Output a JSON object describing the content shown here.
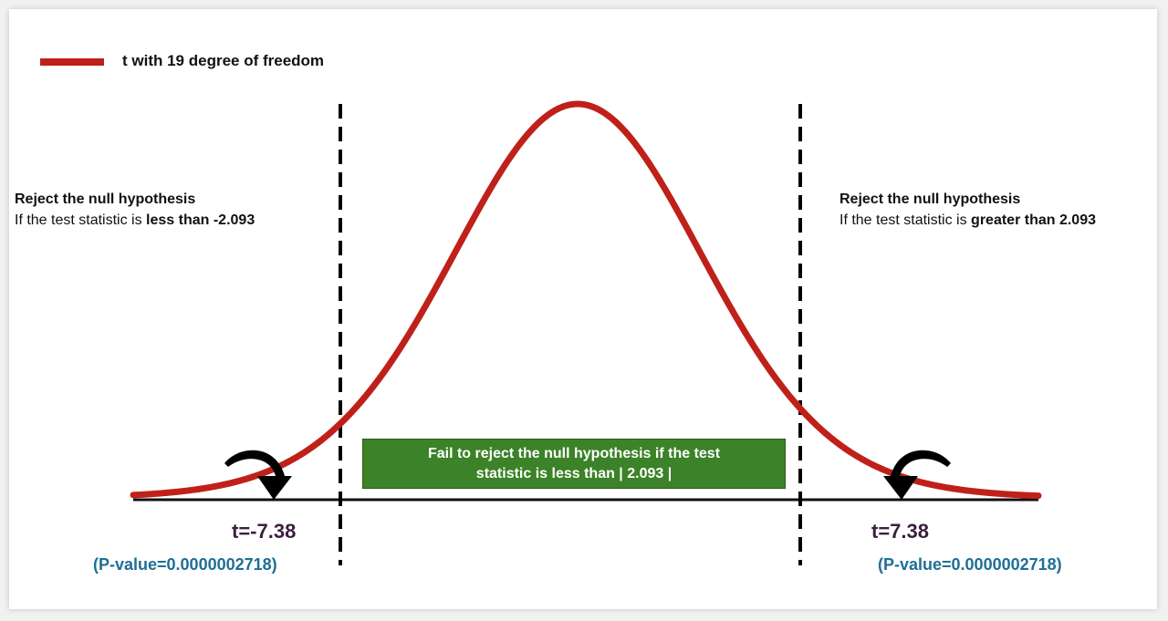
{
  "legend": {
    "label": "t with 19 degree of freedom",
    "color": "#c0201a"
  },
  "left_region": {
    "title": "Reject the null hypothesis",
    "rule_prefix": "If the test statistic is ",
    "rule_emphasis": "less than -2.093"
  },
  "right_region": {
    "title": "Reject the null hypothesis",
    "rule_prefix": "If the test statistic is ",
    "rule_emphasis": "greater than 2.093"
  },
  "center_region": {
    "line1": "Fail to reject the null hypothesis if the test",
    "line2": "statistic is less than  | 2.093 |",
    "color": "#3c8228"
  },
  "left_stat": {
    "t_label": "t=-7.38",
    "p_label": "(P-value=0.0000002718)"
  },
  "right_stat": {
    "t_label": "t=7.38",
    "p_label": "(P-value=0.0000002718)"
  },
  "colors": {
    "curve": "#c0201a",
    "t_text": "#3b1f3e",
    "p_text": "#1f6e96"
  }
}
